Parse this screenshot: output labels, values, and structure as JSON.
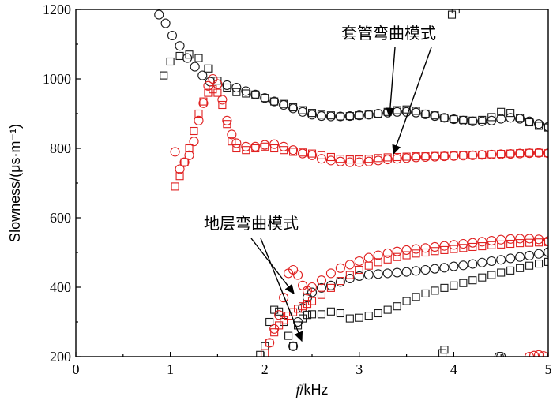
{
  "chart_data": {
    "type": "scatter",
    "title": "",
    "xlabel_italic": "f",
    "xlabel_rest": "/kHz",
    "ylabel": "Slowness/(μs·m⁻¹)",
    "xlim": [
      0,
      5
    ],
    "ylim": [
      200,
      1200
    ],
    "xticks": [
      0,
      1,
      2,
      3,
      4,
      5
    ],
    "yticks": [
      200,
      400,
      600,
      800,
      1000,
      1200
    ],
    "grid": false,
    "colors": {
      "black": "#1a1a1a",
      "red": "#e02020"
    },
    "series": [
      {
        "marker": "square",
        "color": "black",
        "x": [
          0.93,
          1.0,
          1.1,
          1.2,
          1.3,
          1.4,
          1.5,
          1.6,
          1.7,
          1.8,
          1.9,
          2.0,
          2.1,
          2.2,
          2.3,
          2.4,
          2.5,
          2.6,
          2.7,
          2.8,
          2.9,
          3.0,
          3.1,
          3.2,
          3.3,
          3.4,
          3.5,
          3.6,
          3.7,
          3.8,
          3.9,
          4.0,
          4.1,
          4.2,
          4.3,
          4.4,
          4.5,
          4.6,
          4.7,
          4.8,
          4.9,
          5.0
        ],
        "y": [
          1010,
          1050,
          1066,
          1070,
          1060,
          1030,
          995,
          975,
          962,
          958,
          955,
          945,
          935,
          928,
          918,
          910,
          902,
          897,
          895,
          892,
          893,
          895,
          897,
          900,
          905,
          910,
          912,
          908,
          900,
          895,
          888,
          884,
          882,
          880,
          882,
          890,
          905,
          902,
          888,
          875,
          865,
          860
        ]
      },
      {
        "marker": "circle",
        "color": "black",
        "x": [
          0.88,
          0.95,
          1.02,
          1.1,
          1.18,
          1.26,
          1.34,
          1.42,
          1.5,
          1.6,
          1.7,
          1.8,
          1.9,
          2.0,
          2.1,
          2.2,
          2.3,
          2.4,
          2.5,
          2.6,
          2.7,
          2.8,
          2.9,
          3.0,
          3.1,
          3.2,
          3.3,
          3.4,
          3.5,
          3.6,
          3.7,
          3.8,
          3.9,
          4.0,
          4.1,
          4.2,
          4.3,
          4.4,
          4.5,
          4.6,
          4.7,
          4.8,
          4.9,
          5.0
        ],
        "y": [
          1185,
          1160,
          1125,
          1095,
          1060,
          1035,
          1010,
          992,
          985,
          982,
          975,
          965,
          955,
          945,
          935,
          925,
          915,
          905,
          897,
          893,
          892,
          892,
          893,
          895,
          897,
          900,
          903,
          905,
          905,
          903,
          898,
          893,
          888,
          884,
          880,
          878,
          878,
          880,
          885,
          888,
          885,
          878,
          870,
          862
        ]
      },
      {
        "marker": "square",
        "color": "red",
        "x": [
          1.05,
          1.1,
          1.15,
          1.2,
          1.25,
          1.3,
          1.35,
          1.4,
          1.45,
          1.5,
          1.55,
          1.6,
          1.65,
          1.7,
          1.8,
          1.9,
          2.0,
          2.1,
          2.2,
          2.3,
          2.4,
          2.5,
          2.6,
          2.7,
          2.8,
          2.9,
          3.0,
          3.1,
          3.2,
          3.3,
          3.4,
          3.5,
          3.6,
          3.7,
          3.8,
          3.9,
          4.0,
          4.1,
          4.2,
          4.3,
          4.4,
          4.5,
          4.6,
          4.7,
          4.8,
          4.9,
          5.0
        ],
        "y": [
          690,
          720,
          760,
          800,
          850,
          900,
          935,
          960,
          970,
          960,
          925,
          870,
          820,
          800,
          795,
          800,
          805,
          800,
          795,
          790,
          788,
          785,
          780,
          775,
          770,
          768,
          768,
          770,
          772,
          774,
          775,
          776,
          777,
          777,
          778,
          778,
          779,
          780,
          781,
          782,
          783,
          784,
          785,
          786,
          787,
          787,
          786
        ]
      },
      {
        "marker": "circle",
        "color": "red",
        "x": [
          1.05,
          1.1,
          1.15,
          1.2,
          1.25,
          1.3,
          1.35,
          1.4,
          1.45,
          1.5,
          1.55,
          1.6,
          1.65,
          1.7,
          1.8,
          1.9,
          2.0,
          2.1,
          2.2,
          2.3,
          2.4,
          2.5,
          2.6,
          2.7,
          2.8,
          2.9,
          3.0,
          3.1,
          3.2,
          3.3,
          3.4,
          3.5,
          3.6,
          3.7,
          3.8,
          3.9,
          4.0,
          4.1,
          4.2,
          4.3,
          4.4,
          4.5,
          4.6,
          4.7,
          4.8,
          4.9,
          5.0
        ],
        "y": [
          790,
          740,
          760,
          780,
          820,
          880,
          930,
          980,
          1000,
          985,
          940,
          880,
          840,
          815,
          805,
          805,
          810,
          812,
          805,
          795,
          785,
          780,
          770,
          765,
          762,
          760,
          760,
          762,
          765,
          768,
          770,
          772,
          774,
          775,
          776,
          777,
          778,
          779,
          780,
          781,
          782,
          783,
          784,
          785,
          786,
          787,
          786
        ]
      },
      {
        "marker": "square",
        "color": "black",
        "x": [
          1.95,
          2.0,
          2.05,
          2.1,
          2.15,
          2.2,
          2.25,
          2.3,
          2.35,
          2.4,
          2.45,
          2.5,
          2.6,
          2.7,
          2.8,
          2.9,
          3.0,
          3.1,
          3.2,
          3.3,
          3.4,
          3.5,
          3.6,
          3.7,
          3.8,
          3.9,
          4.0,
          4.1,
          4.2,
          4.3,
          4.4,
          4.5,
          4.6,
          4.7,
          4.8,
          4.9,
          5.0
        ],
        "y": [
          205,
          230,
          300,
          335,
          330,
          300,
          260,
          230,
          290,
          310,
          320,
          322,
          322,
          330,
          325,
          310,
          312,
          318,
          325,
          335,
          345,
          360,
          372,
          382,
          390,
          398,
          405,
          412,
          420,
          428,
          435,
          442,
          448,
          455,
          462,
          468,
          473
        ]
      },
      {
        "marker": "circle",
        "color": "black",
        "x": [
          2.3,
          2.35,
          2.4,
          2.45,
          2.5,
          2.6,
          2.7,
          2.8,
          2.9,
          3.0,
          3.1,
          3.2,
          3.3,
          3.4,
          3.5,
          3.6,
          3.7,
          3.8,
          3.9,
          4.0,
          4.1,
          4.2,
          4.3,
          4.4,
          4.5,
          4.6,
          4.7,
          4.8,
          4.9,
          5.0
        ],
        "y": [
          230,
          300,
          340,
          370,
          385,
          398,
          405,
          415,
          425,
          432,
          436,
          438,
          440,
          442,
          444,
          447,
          450,
          453,
          456,
          460,
          463,
          467,
          471,
          475,
          479,
          483,
          487,
          491,
          496,
          501
        ]
      },
      {
        "marker": "square",
        "color": "red",
        "x": [
          2.0,
          2.05,
          2.1,
          2.15,
          2.2,
          2.25,
          2.3,
          2.35,
          2.4,
          2.45,
          2.5,
          2.6,
          2.7,
          2.8,
          2.9,
          3.0,
          3.1,
          3.2,
          3.3,
          3.4,
          3.5,
          3.6,
          3.7,
          3.8,
          3.9,
          4.0,
          4.1,
          4.2,
          4.3,
          4.4,
          4.5,
          4.6,
          4.7,
          4.8,
          4.9,
          5.0
        ],
        "y": [
          210,
          240,
          270,
          290,
          305,
          318,
          328,
          338,
          345,
          352,
          360,
          378,
          398,
          418,
          435,
          450,
          462,
          472,
          480,
          487,
          492,
          497,
          500,
          504,
          507,
          510,
          513,
          516,
          518,
          521,
          523,
          525,
          527,
          528,
          529,
          530
        ]
      },
      {
        "marker": "circle",
        "color": "red",
        "x": [
          2.05,
          2.1,
          2.15,
          2.2,
          2.25,
          2.3,
          2.35,
          2.4,
          2.45,
          2.5,
          2.6,
          2.7,
          2.8,
          2.9,
          3.0,
          3.1,
          3.2,
          3.3,
          3.4,
          3.5,
          3.6,
          3.7,
          3.8,
          3.9,
          4.0,
          4.1,
          4.2,
          4.3,
          4.4,
          4.5,
          4.6,
          4.7,
          4.8,
          4.9,
          5.0
        ],
        "y": [
          240,
          280,
          320,
          370,
          440,
          450,
          435,
          405,
          390,
          400,
          420,
          440,
          455,
          465,
          475,
          485,
          492,
          498,
          503,
          507,
          510,
          513,
          516,
          519,
          522,
          525,
          528,
          531,
          534,
          537,
          539,
          540,
          540,
          538,
          533
        ]
      },
      {
        "marker": "square",
        "color": "black",
        "x": [
          3.88,
          3.9
        ],
        "y": [
          210,
          220
        ]
      },
      {
        "marker": "circle",
        "color": "black",
        "x": [
          4.48,
          4.5
        ],
        "y": [
          200,
          200
        ]
      },
      {
        "marker": "circle",
        "color": "red",
        "x": [
          4.8,
          4.85,
          4.9,
          4.95
        ],
        "y": [
          200,
          203,
          205,
          202
        ]
      },
      {
        "marker": "square",
        "color": "black",
        "x": [
          3.98,
          4.02
        ],
        "y": [
          1185,
          1200
        ]
      }
    ],
    "annotations": [
      {
        "text": "套管弯曲模式",
        "text_anchor": [
          3.2,
          1128
        ]
      },
      {
        "text": "地层弯曲模式",
        "text_anchor": [
          1.35,
          588
        ]
      }
    ]
  }
}
